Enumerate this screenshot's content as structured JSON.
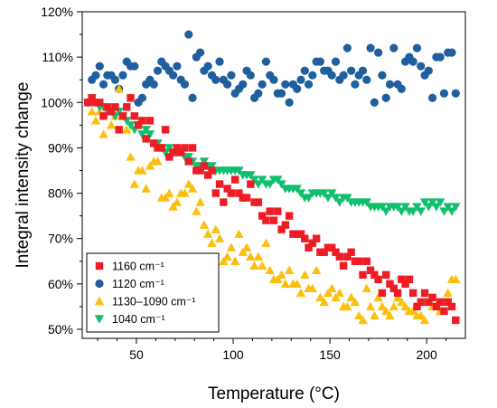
{
  "chart_data": {
    "type": "scatter",
    "xlabel": "Temperature (°C)",
    "ylabel": "Integral intensity change",
    "xlim": [
      22,
      220
    ],
    "ylim": [
      48,
      120
    ],
    "xticks": [
      50,
      100,
      150,
      200
    ],
    "xtick_labels": [
      "50",
      "100",
      "150",
      "200"
    ],
    "yticks": [
      50,
      60,
      70,
      80,
      90,
      100,
      110,
      120
    ],
    "ytick_labels": [
      "50%",
      "60%",
      "70%",
      "80%",
      "90%",
      "100%",
      "110%",
      "120%"
    ],
    "grid": false,
    "legend_position": "bottom-left",
    "series": [
      {
        "name": "1160 cm⁻¹",
        "marker": "square",
        "color": "#ee1c25",
        "x": [
          25,
          27,
          29,
          31,
          33,
          35,
          37,
          39,
          41,
          43,
          45,
          47,
          49,
          51,
          53,
          55,
          57,
          59,
          61,
          63,
          65,
          67,
          69,
          71,
          73,
          75,
          77,
          79,
          81,
          83,
          85,
          87,
          89,
          91,
          93,
          95,
          97,
          99,
          101,
          103,
          105,
          107,
          109,
          111,
          113,
          115,
          117,
          119,
          121,
          123,
          125,
          127,
          129,
          131,
          133,
          135,
          137,
          139,
          141,
          143,
          145,
          147,
          149,
          151,
          153,
          155,
          157,
          159,
          161,
          163,
          165,
          167,
          169,
          171,
          173,
          175,
          177,
          179,
          181,
          183,
          185,
          187,
          189,
          191,
          193,
          195,
          197,
          199,
          201,
          203,
          205,
          207,
          209,
          211,
          213,
          215
        ],
        "y": [
          100,
          101,
          100,
          100,
          97,
          99,
          98,
          99,
          94,
          97,
          99,
          101,
          97,
          95,
          96,
          92,
          96,
          91,
          90,
          90,
          94,
          88,
          89,
          90,
          89,
          90,
          87,
          90,
          85,
          85,
          86,
          84,
          85,
          80,
          82,
          78,
          81,
          80,
          83,
          80,
          79,
          79,
          82,
          78,
          78,
          75,
          74,
          76,
          74,
          76,
          72,
          73,
          75,
          71,
          71,
          71,
          70,
          68,
          69,
          70,
          67,
          67,
          68,
          68,
          67,
          66,
          64,
          66,
          67,
          65,
          65,
          62,
          65,
          63,
          62,
          61,
          58,
          62,
          60,
          59,
          58,
          61,
          60,
          61,
          58,
          55,
          56,
          58,
          56,
          57,
          55,
          56,
          54,
          56,
          55,
          52
        ]
      },
      {
        "name": "1120 cm⁻¹",
        "marker": "circle",
        "color": "#1f5f9e",
        "x": [
          25,
          27,
          29,
          31,
          33,
          35,
          37,
          39,
          41,
          43,
          45,
          47,
          49,
          51,
          53,
          55,
          57,
          59,
          61,
          63,
          65,
          67,
          69,
          71,
          73,
          75,
          77,
          79,
          81,
          83,
          85,
          87,
          89,
          91,
          93,
          95,
          97,
          99,
          101,
          103,
          105,
          107,
          109,
          111,
          113,
          115,
          117,
          119,
          121,
          123,
          125,
          127,
          129,
          131,
          133,
          135,
          137,
          139,
          141,
          143,
          145,
          147,
          149,
          151,
          153,
          155,
          157,
          159,
          161,
          163,
          165,
          167,
          169,
          171,
          173,
          175,
          177,
          179,
          181,
          183,
          185,
          187,
          189,
          191,
          193,
          195,
          197,
          199,
          201,
          203,
          205,
          207,
          209,
          211,
          213,
          215
        ],
        "y": [
          100,
          105,
          106,
          108,
          104,
          106,
          106,
          105,
          103,
          106,
          109,
          108,
          108,
          100,
          101,
          104,
          105,
          104,
          107,
          109,
          108,
          107,
          106,
          108,
          105,
          104,
          115,
          101,
          110,
          111,
          107,
          108,
          106,
          105,
          109,
          105,
          104,
          106,
          102,
          103,
          104,
          107,
          106,
          101,
          102,
          104,
          109,
          106,
          105,
          102,
          102,
          104,
          100,
          104,
          103,
          105,
          107,
          104,
          106,
          109,
          109,
          107,
          107,
          106,
          109,
          105,
          106,
          112,
          107,
          104,
          106,
          107,
          105,
          112,
          100,
          111,
          106,
          101,
          104,
          112,
          104,
          103,
          109,
          110,
          109,
          112,
          108,
          106,
          107,
          101,
          110,
          110,
          102,
          111,
          111,
          102
        ]
      },
      {
        "name": "1130–1090 cm⁻¹",
        "marker": "triangle-up",
        "color": "#fbbf0f",
        "x": [
          25,
          27,
          29,
          31,
          33,
          35,
          37,
          39,
          41,
          43,
          45,
          47,
          49,
          51,
          53,
          55,
          57,
          59,
          61,
          63,
          65,
          67,
          69,
          71,
          73,
          75,
          77,
          79,
          81,
          83,
          85,
          87,
          89,
          91,
          93,
          95,
          97,
          99,
          101,
          103,
          105,
          107,
          109,
          111,
          113,
          115,
          117,
          119,
          121,
          123,
          125,
          127,
          129,
          131,
          133,
          135,
          137,
          139,
          141,
          143,
          145,
          147,
          149,
          151,
          153,
          155,
          157,
          159,
          161,
          163,
          165,
          167,
          169,
          171,
          173,
          175,
          177,
          179,
          181,
          183,
          185,
          187,
          189,
          191,
          193,
          195,
          197,
          199,
          201,
          203,
          205,
          207,
          209,
          211,
          213,
          215
        ],
        "y": [
          100,
          98,
          96,
          98,
          93,
          98,
          95,
          97,
          103,
          97,
          94,
          88,
          82,
          85,
          85,
          81,
          86,
          87,
          87,
          79,
          79,
          80,
          77,
          78,
          80,
          80,
          82,
          81,
          76,
          78,
          73,
          71,
          69,
          72,
          70,
          65,
          66,
          68,
          65,
          71,
          67,
          68,
          66,
          64,
          66,
          64,
          69,
          63,
          61,
          61,
          62,
          60,
          63,
          60,
          60,
          58,
          62,
          59,
          59,
          63,
          57,
          56,
          58,
          59,
          57,
          58,
          55,
          55,
          57,
          56,
          53,
          52,
          59,
          55,
          53,
          57,
          55,
          54,
          53,
          55,
          57,
          56,
          55,
          54,
          54,
          53,
          53,
          52,
          56,
          55,
          55,
          54,
          56,
          58,
          61,
          61
        ]
      },
      {
        "name": "1040 cm⁻¹",
        "marker": "triangle-down",
        "color": "#12bf6f",
        "x": [
          25,
          27,
          29,
          31,
          33,
          35,
          37,
          39,
          41,
          43,
          45,
          47,
          49,
          51,
          53,
          55,
          57,
          59,
          61,
          63,
          65,
          67,
          69,
          71,
          73,
          75,
          77,
          79,
          81,
          83,
          85,
          87,
          89,
          91,
          93,
          95,
          97,
          99,
          101,
          103,
          105,
          107,
          109,
          111,
          113,
          115,
          117,
          119,
          121,
          123,
          125,
          127,
          129,
          131,
          133,
          135,
          137,
          139,
          141,
          143,
          145,
          147,
          149,
          151,
          153,
          155,
          157,
          159,
          161,
          163,
          165,
          167,
          169,
          171,
          173,
          175,
          177,
          179,
          181,
          183,
          185,
          187,
          189,
          191,
          193,
          195,
          197,
          199,
          201,
          203,
          205,
          207,
          209,
          211,
          213,
          215
        ],
        "y": [
          100,
          101,
          100,
          99,
          99,
          98,
          98,
          97,
          98,
          97,
          96,
          95,
          94,
          95,
          93,
          94,
          93,
          91,
          91,
          90,
          89,
          90,
          89,
          89,
          89,
          88,
          88,
          87,
          86,
          86,
          87,
          86,
          86,
          85,
          85,
          85,
          85,
          85,
          85,
          85,
          84,
          84,
          84,
          83,
          82,
          83,
          82,
          82,
          83,
          83,
          82,
          81,
          81,
          81,
          81,
          80,
          79,
          79,
          80,
          80,
          80,
          80,
          79,
          80,
          79,
          78,
          79,
          79,
          78,
          78,
          78,
          78,
          78,
          77,
          77,
          77,
          77,
          76,
          77,
          77,
          77,
          76,
          77,
          76,
          76,
          77,
          76,
          78,
          77,
          78,
          77,
          78,
          76,
          77,
          76,
          77
        ]
      }
    ]
  }
}
